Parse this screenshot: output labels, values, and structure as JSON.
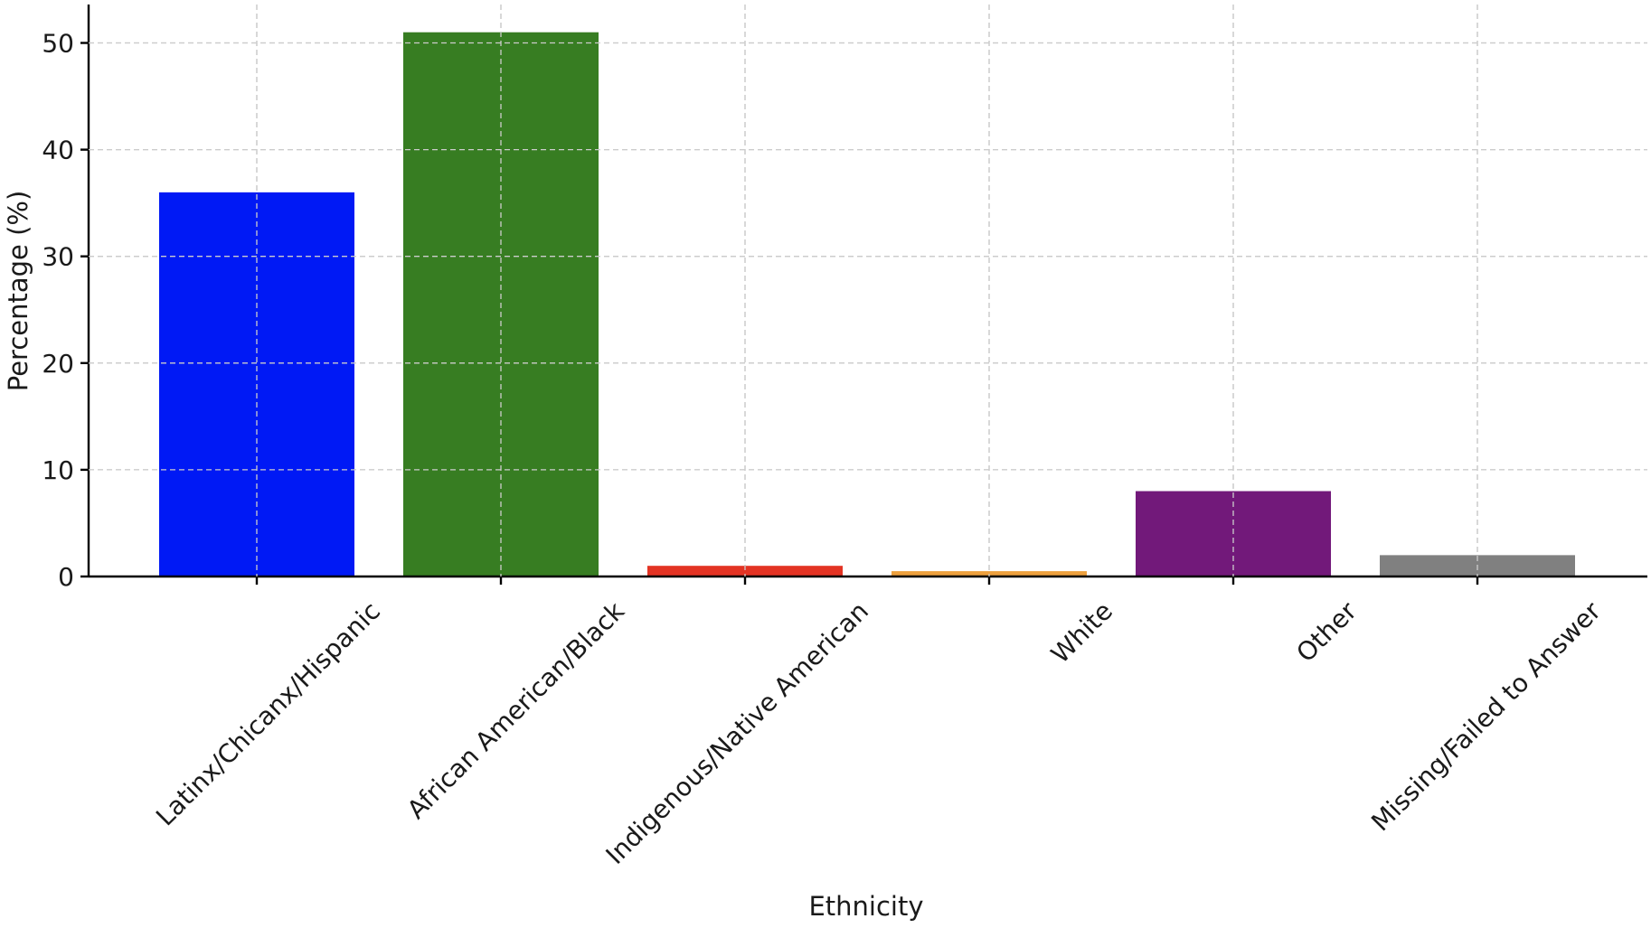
{
  "chart_data": {
    "type": "bar",
    "title": "",
    "xlabel": "Ethnicity",
    "ylabel": "Percentage (%)",
    "categories": [
      "Latinx/Chicanx/Hispanic",
      "African American/Black",
      "Indigenous/Native American",
      "White",
      "Other",
      "Missing/Failed to Answer"
    ],
    "values": [
      36,
      51,
      1,
      0.5,
      8,
      2
    ],
    "colors": [
      "#0019f5",
      "#377d22",
      "#e33323",
      "#eda03d",
      "#72197a",
      "#808080"
    ],
    "ylim": [
      0,
      53.6
    ],
    "yticks": [
      0,
      10,
      20,
      30,
      40,
      50
    ],
    "grid": true,
    "legend": "none"
  }
}
